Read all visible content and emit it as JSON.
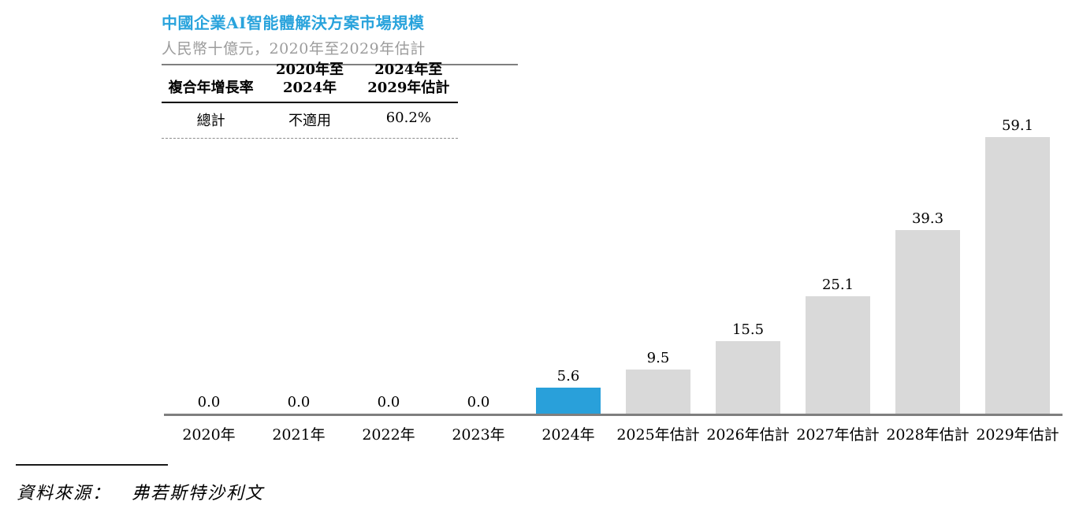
{
  "chart_data": {
    "type": "bar",
    "title": "中國企業AI智能體解決方案市場規模",
    "subtitle": "人民幣十億元，2020年至2029年估計",
    "unit_label": "人民幣十億元",
    "categories": [
      "2020年",
      "2021年",
      "2022年",
      "2023年",
      "2024年",
      "2025年估計",
      "2026年估計",
      "2027年估計",
      "2028年估計",
      "2029年估計"
    ],
    "values": [
      0.0,
      0.0,
      0.0,
      0.0,
      5.6,
      9.5,
      15.5,
      25.1,
      39.3,
      59.1
    ],
    "value_labels": [
      "0.0",
      "0.0",
      "0.0",
      "0.0",
      "5.6",
      "9.5",
      "15.5",
      "25.1",
      "39.3",
      "59.1"
    ],
    "highlight_index": 4,
    "ylim": [
      0,
      62
    ],
    "grid": false,
    "legend": null,
    "colors": {
      "highlight_bar": "#29A0DA",
      "default_bar": "#D9D9D9",
      "title": "#29A3DC",
      "subtitle": "#9C9C9C",
      "axis_line": "#7F7F7F"
    }
  },
  "cagr_table": {
    "col1_header": "複合年增長率",
    "col2_header_line1": "2020年至",
    "col2_header_line2": "2024年",
    "col3_header_line1": "2024年至",
    "col3_header_line2": "2029年估計",
    "row": {
      "label": "總計",
      "col2": "不適用",
      "col3": "60.2%"
    }
  },
  "footer": {
    "source_label": "資料來源：",
    "source_value": "弗若斯特沙利文"
  }
}
